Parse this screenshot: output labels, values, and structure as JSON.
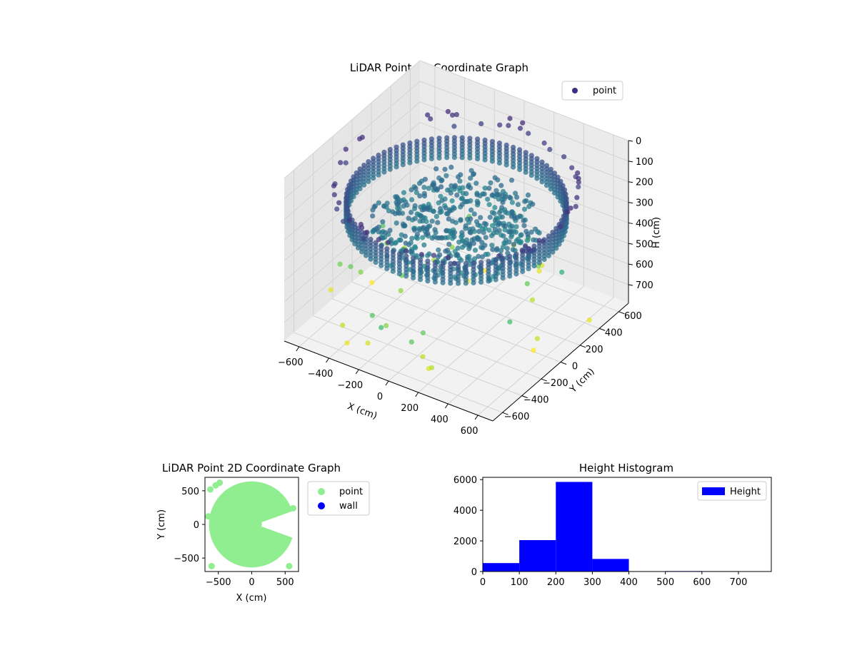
{
  "chart_data": [
    {
      "type": "scatter3d",
      "title": "LiDAR Point 3D Coordinate Graph",
      "xlabel": "X (cm)",
      "ylabel": "Y (cm)",
      "zlabel": "H (cm)",
      "xlim": [
        -700,
        700
      ],
      "ylim": [
        -700,
        700
      ],
      "zlim": [
        0,
        790
      ],
      "z_inverted": true,
      "xticks": [
        -600,
        -400,
        -200,
        0,
        200,
        400,
        600
      ],
      "yticks": [
        -600,
        -400,
        -200,
        0,
        200,
        400,
        600
      ],
      "zticks": [
        0,
        100,
        200,
        300,
        400,
        500,
        600,
        700
      ],
      "colormap": "viridis",
      "grid": true,
      "legend": {
        "entries": [
          "point"
        ],
        "position": "top-right",
        "color": "#3b2f84"
      },
      "structure": {
        "wall_radius": 620,
        "wall_height_range": [
          200,
          300
        ],
        "interior_height": 320,
        "interior_radius": 480,
        "high_points_height": 100,
        "low_stray_points_height": 700
      }
    },
    {
      "type": "scatter",
      "title": "LiDAR Point 2D Coordinate Graph",
      "xlabel": "X (cm)",
      "ylabel": "Y (cm)",
      "xlim": [
        -700,
        700
      ],
      "ylim": [
        -700,
        700
      ],
      "xticks": [
        -500,
        0,
        500
      ],
      "yticks": [
        -500,
        0,
        500
      ],
      "series": [
        {
          "name": "point",
          "color": "#90ee90"
        },
        {
          "name": "wall",
          "color": "#0000ff"
        }
      ],
      "legend": {
        "position": "outside-right"
      }
    },
    {
      "type": "bar",
      "title": "Height Histogram",
      "xlim": [
        0,
        790
      ],
      "ylim": [
        0,
        6150
      ],
      "xticks": [
        0,
        100,
        200,
        300,
        400,
        500,
        600,
        700
      ],
      "yticks": [
        0,
        2000,
        4000,
        6000
      ],
      "bins": [
        {
          "from": 0,
          "to": 100,
          "count": 550
        },
        {
          "from": 100,
          "to": 200,
          "count": 2050
        },
        {
          "from": 200,
          "to": 300,
          "count": 5850
        },
        {
          "from": 300,
          "to": 400,
          "count": 820
        },
        {
          "from": 400,
          "to": 500,
          "count": 0
        },
        {
          "from": 500,
          "to": 600,
          "count": 30
        },
        {
          "from": 600,
          "to": 700,
          "count": 25
        },
        {
          "from": 700,
          "to": 790,
          "count": 20
        }
      ],
      "series": [
        {
          "name": "Height",
          "color": "#0000ff"
        }
      ],
      "legend": {
        "position": "top-right"
      }
    }
  ]
}
